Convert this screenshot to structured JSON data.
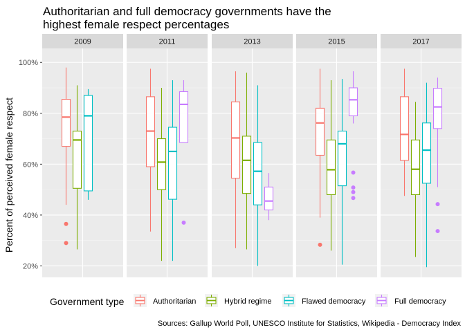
{
  "chart_data": {
    "type": "boxplot",
    "title_lines": [
      "Authoritarian and full democracy governments have the",
      "highest female respect percentages"
    ],
    "ylabel": "Percent of perceived female respect",
    "xlabel": "",
    "ylim": [
      0.155,
      1.055
    ],
    "yticks": [
      0.2,
      0.4,
      0.6,
      0.8,
      1.0
    ],
    "ytick_labels": [
      "20%",
      "40%",
      "60%",
      "80%",
      "100%"
    ],
    "grid": true,
    "legend_title": "Government type",
    "legend_position": "bottom",
    "caption": "Sources: Gallup World Poll, UNESCO Institute for Statistics, Wikipedia - Democracy Index",
    "series": [
      {
        "name": "Authoritarian",
        "color": "#F8766D"
      },
      {
        "name": "Hybrid regime",
        "color": "#7CAE00"
      },
      {
        "name": "Flawed democracy",
        "color": "#00BFC4"
      },
      {
        "name": "Full democracy",
        "color": "#C77CFF"
      }
    ],
    "facets": [
      {
        "label": "2009",
        "boxes": [
          {
            "series": 0,
            "lower": 0.44,
            "q1": 0.67,
            "median": 0.785,
            "q3": 0.855,
            "upper": 0.98,
            "outliers": [
              0.365,
              0.29
            ]
          },
          {
            "series": 1,
            "lower": 0.265,
            "q1": 0.505,
            "median": 0.695,
            "q3": 0.73,
            "upper": 0.91,
            "outliers": []
          },
          {
            "series": 2,
            "lower": 0.46,
            "q1": 0.495,
            "median": 0.79,
            "q3": 0.87,
            "upper": 0.895,
            "outliers": []
          }
        ]
      },
      {
        "label": "2011",
        "boxes": [
          {
            "series": 0,
            "lower": 0.335,
            "q1": 0.59,
            "median": 0.73,
            "q3": 0.865,
            "upper": 0.975,
            "outliers": []
          },
          {
            "series": 1,
            "lower": 0.22,
            "q1": 0.5,
            "median": 0.608,
            "q3": 0.7,
            "upper": 0.9,
            "outliers": []
          },
          {
            "series": 2,
            "lower": 0.22,
            "q1": 0.462,
            "median": 0.65,
            "q3": 0.745,
            "upper": 0.93,
            "outliers": []
          },
          {
            "series": 3,
            "lower": 0.71,
            "q1": 0.685,
            "median": 0.835,
            "q3": 0.885,
            "upper": 0.93,
            "outliers": [
              0.37
            ]
          }
        ]
      },
      {
        "label": "2013",
        "boxes": [
          {
            "series": 0,
            "lower": 0.27,
            "q1": 0.545,
            "median": 0.703,
            "q3": 0.845,
            "upper": 0.965,
            "outliers": []
          },
          {
            "series": 1,
            "lower": 0.265,
            "q1": 0.485,
            "median": 0.615,
            "q3": 0.71,
            "upper": 0.96,
            "outliers": []
          },
          {
            "series": 2,
            "lower": 0.2,
            "q1": 0.44,
            "median": 0.572,
            "q3": 0.685,
            "upper": 0.91,
            "outliers": []
          },
          {
            "series": 3,
            "lower": 0.38,
            "q1": 0.42,
            "median": 0.455,
            "q3": 0.51,
            "upper": 0.565,
            "outliers": []
          }
        ]
      },
      {
        "label": "2015",
        "boxes": [
          {
            "series": 0,
            "lower": 0.39,
            "q1": 0.635,
            "median": 0.762,
            "q3": 0.82,
            "upper": 0.975,
            "outliers": [
              0.283
            ]
          },
          {
            "series": 1,
            "lower": 0.26,
            "q1": 0.48,
            "median": 0.578,
            "q3": 0.695,
            "upper": 0.93,
            "outliers": []
          },
          {
            "series": 2,
            "lower": 0.205,
            "q1": 0.515,
            "median": 0.68,
            "q3": 0.73,
            "upper": 0.935,
            "outliers": []
          },
          {
            "series": 3,
            "lower": 0.76,
            "q1": 0.79,
            "median": 0.853,
            "q3": 0.9,
            "upper": 0.965,
            "outliers": [
              0.567,
              0.508,
              0.49,
              0.467
            ]
          }
        ]
      },
      {
        "label": "2017",
        "boxes": [
          {
            "series": 0,
            "lower": 0.475,
            "q1": 0.615,
            "median": 0.717,
            "q3": 0.865,
            "upper": 0.975,
            "outliers": []
          },
          {
            "series": 1,
            "lower": 0.235,
            "q1": 0.48,
            "median": 0.58,
            "q3": 0.695,
            "upper": 0.845,
            "outliers": []
          },
          {
            "series": 2,
            "lower": 0.195,
            "q1": 0.525,
            "median": 0.655,
            "q3": 0.762,
            "upper": 0.92,
            "outliers": []
          },
          {
            "series": 3,
            "lower": 0.51,
            "q1": 0.74,
            "median": 0.825,
            "q3": 0.898,
            "upper": 0.94,
            "outliers": [
              0.443,
              0.337
            ]
          }
        ]
      }
    ]
  }
}
